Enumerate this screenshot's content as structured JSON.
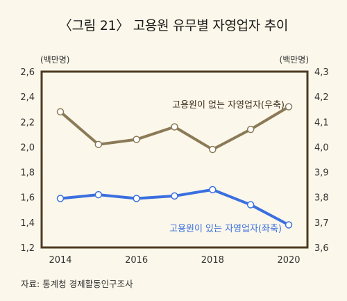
{
  "title": "〈그림 21〉 고용원 유무별 자영업자 추이",
  "source": "자료: 통계청 경제활동인구조사",
  "chart_data": {
    "type": "line",
    "x": [
      2014,
      2015,
      2016,
      2017,
      2018,
      2019,
      2020
    ],
    "x_tick_labels": [
      "2014",
      "2016",
      "2018",
      "2020"
    ],
    "y_left": {
      "unit": "(백만명)",
      "ylim": [
        1.2,
        2.6
      ],
      "ticks": [
        "1,2",
        "1,4",
        "1,6",
        "1,8",
        "2,0",
        "2,2",
        "2,4",
        "2,6"
      ]
    },
    "y_right": {
      "unit": "(백만명)",
      "ylim": [
        3.6,
        4.3
      ],
      "ticks": [
        "3,6",
        "3,7",
        "3,8",
        "3,9",
        "4,0",
        "4,1",
        "4,2",
        "4,3"
      ]
    },
    "series": [
      {
        "name": "고용원이 없는 자영업자(우축)",
        "axis": "right",
        "color": "#8b7a57",
        "values": [
          4.14,
          4.01,
          4.03,
          4.08,
          3.99,
          4.07,
          4.16
        ]
      },
      {
        "name": "고용원이 있는 자영업자(좌축)",
        "axis": "left",
        "color": "#3a6fe0",
        "values": [
          1.59,
          1.62,
          1.59,
          1.61,
          1.66,
          1.54,
          1.38
        ]
      }
    ],
    "grid": false,
    "frame_color": "#4e3a22"
  }
}
